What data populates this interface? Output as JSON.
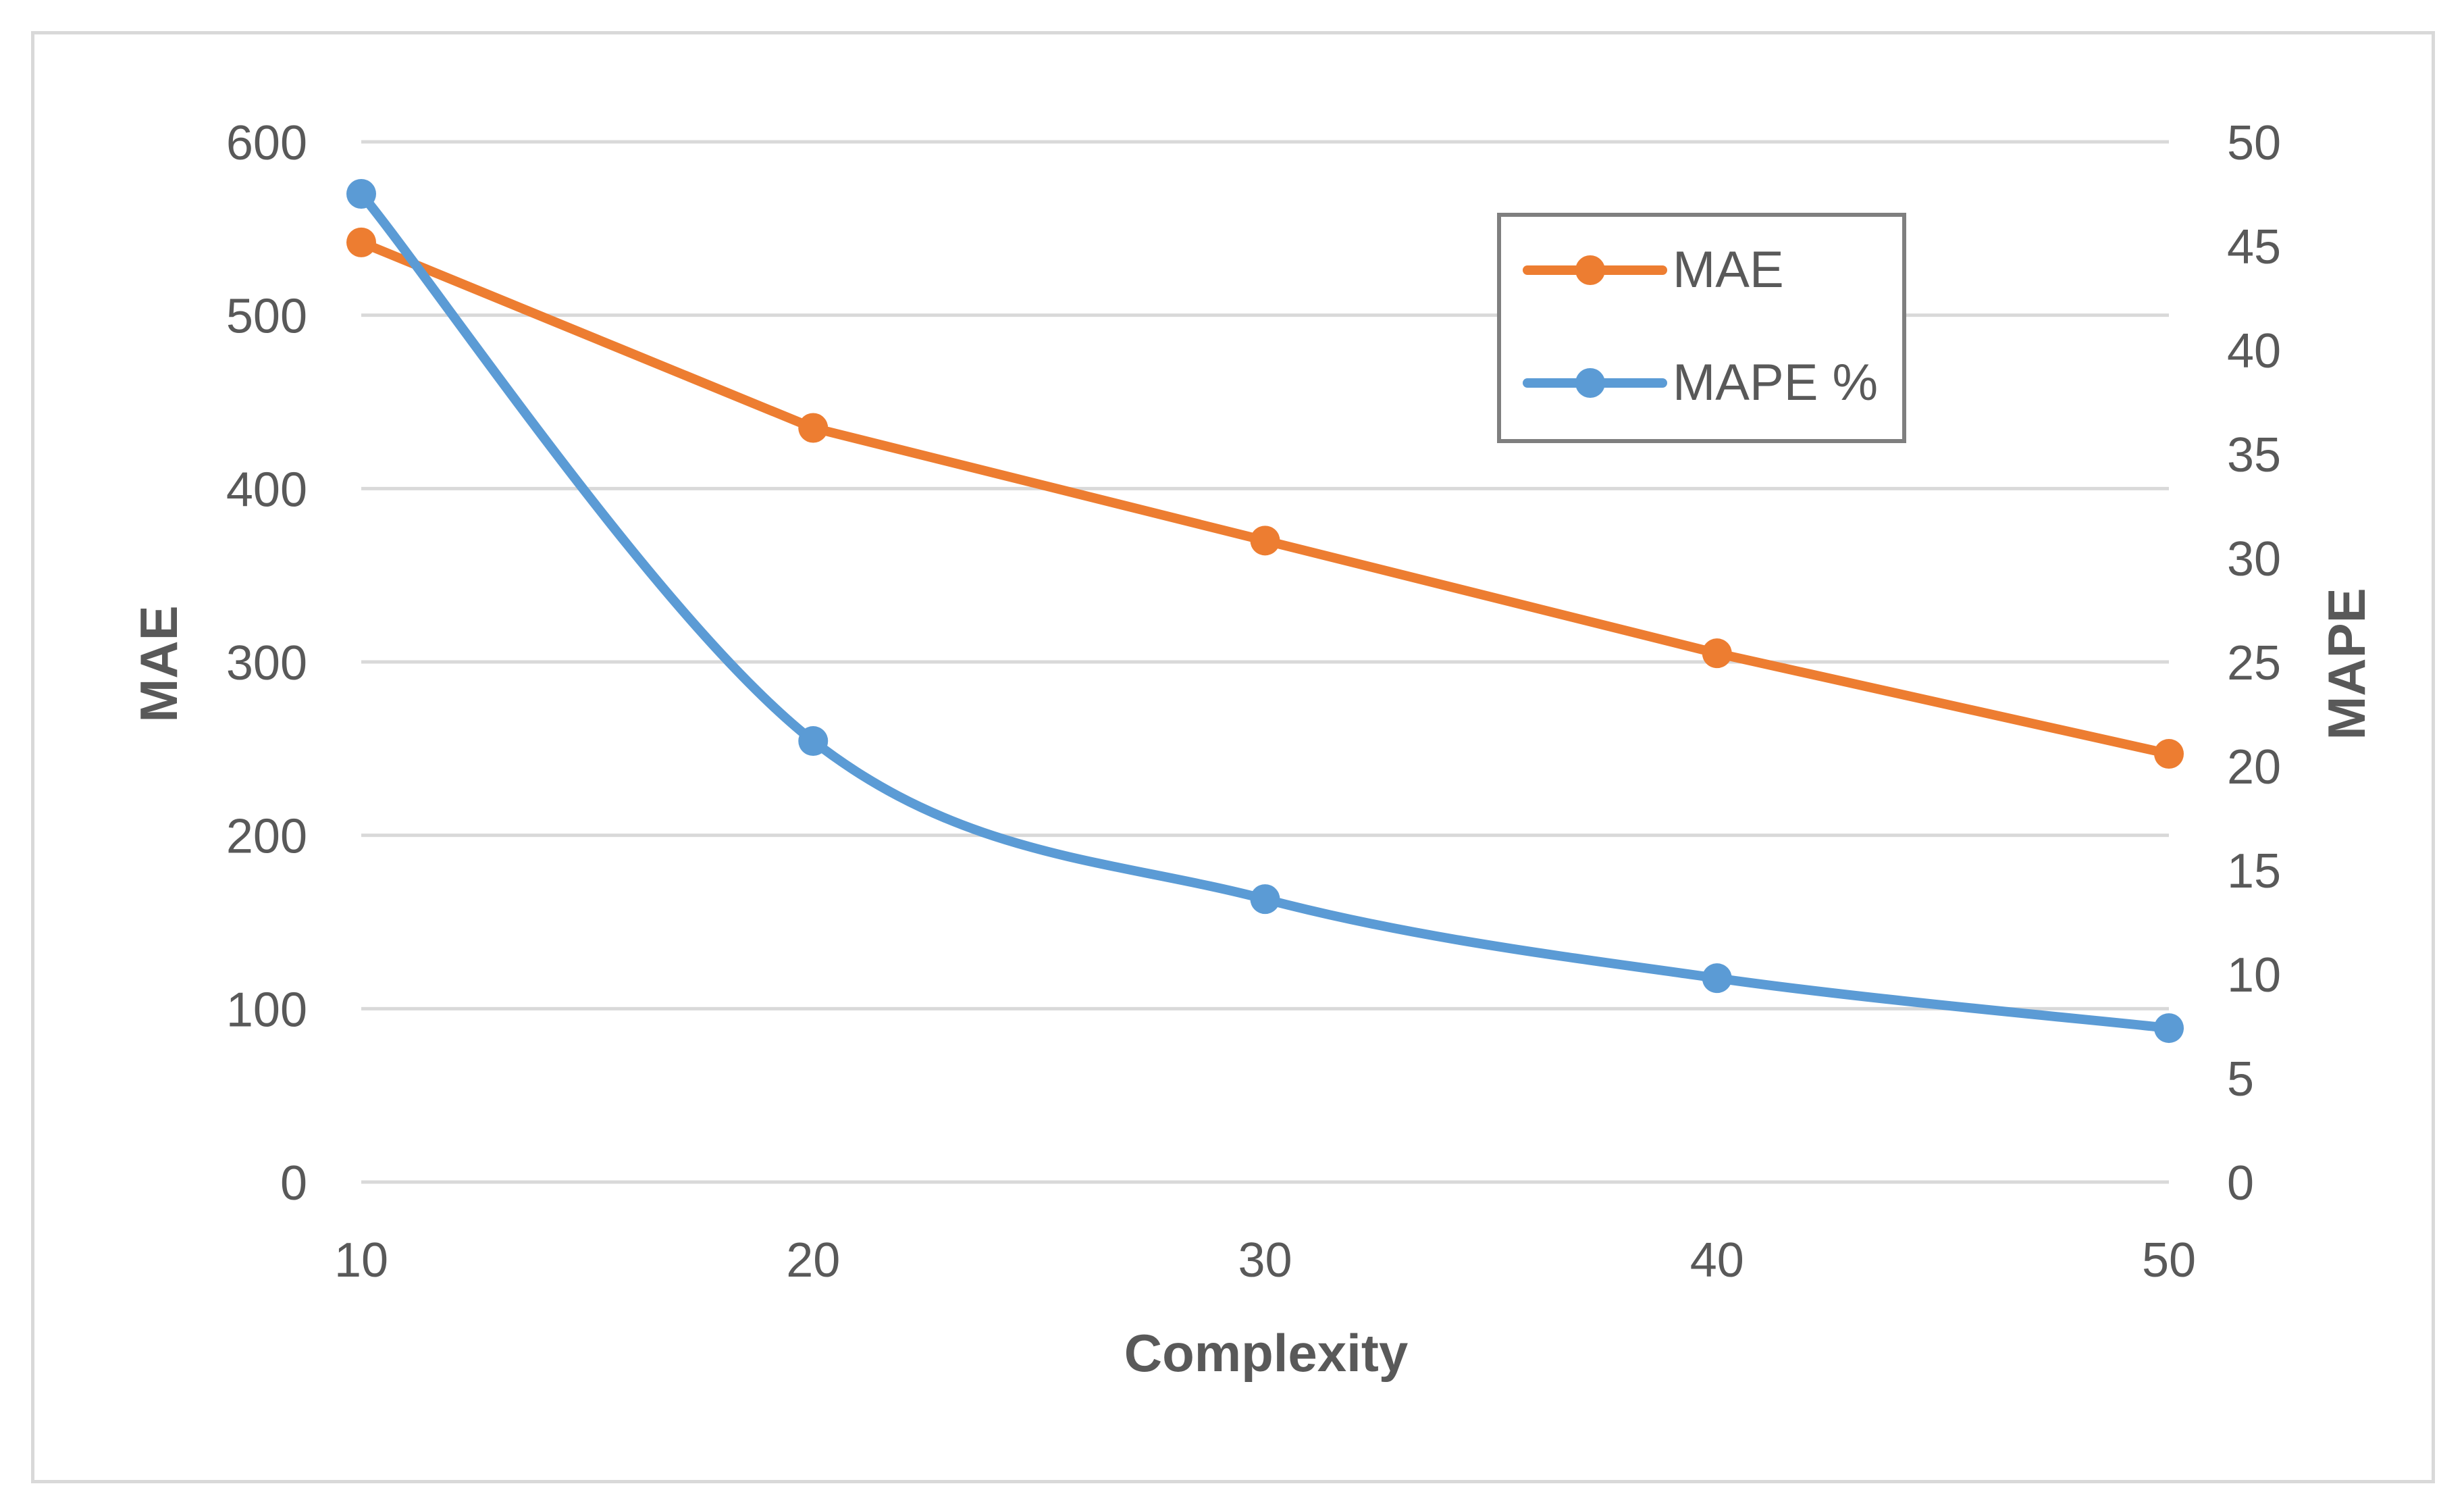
{
  "chart_data": {
    "type": "line",
    "title": "",
    "xlabel": "Complexity",
    "ylabel": "MAE",
    "y2label": "MAPE",
    "x": [
      10,
      20,
      30,
      40,
      50
    ],
    "xticks": [
      "10",
      "20",
      "30",
      "40",
      "50"
    ],
    "xlim": [
      10,
      50
    ],
    "ylim": [
      0,
      600
    ],
    "yticks": [
      "0",
      "100",
      "200",
      "300",
      "400",
      "500",
      "600"
    ],
    "y2lim": [
      0,
      50
    ],
    "y2ticks": [
      "0",
      "5",
      "10",
      "15",
      "20",
      "25",
      "30",
      "35",
      "40",
      "45",
      "50"
    ],
    "grid": true,
    "legend_position": "top-right",
    "series": [
      {
        "name": "MAE",
        "axis": "left",
        "color": "#ed7d31",
        "smooth": false,
        "values": [
          542,
          435,
          370,
          305,
          247
        ]
      },
      {
        "name": "MAPE %",
        "axis": "right",
        "color": "#5b9bd5",
        "smooth": true,
        "values": [
          47.5,
          21.2,
          13.6,
          9.8,
          7.4
        ]
      }
    ],
    "gridline_color": "#d9d9d9",
    "text_color": "#595959"
  }
}
